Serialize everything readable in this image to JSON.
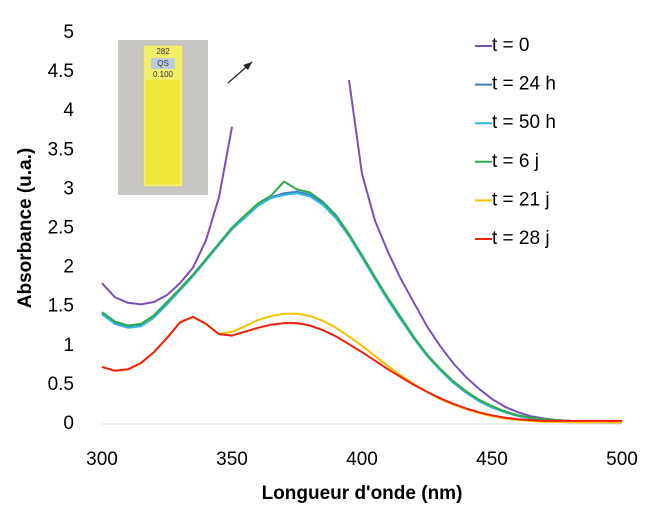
{
  "chart_data": {
    "type": "line",
    "x_label": "Longueur d'onde (nm)",
    "y_label": "Absorbance (u.a.)",
    "annotations": [
      "282",
      "QS",
      "0.100"
    ],
    "x": [
      300,
      305,
      310,
      315,
      320,
      325,
      330,
      335,
      340,
      345,
      350,
      355,
      360,
      365,
      370,
      375,
      380,
      385,
      390,
      395,
      400,
      405,
      410,
      415,
      420,
      425,
      430,
      435,
      440,
      445,
      450,
      455,
      460,
      465,
      470,
      475,
      480,
      485,
      490,
      495,
      500
    ],
    "series": [
      {
        "name": "t = 0",
        "color": "#7b4fb5",
        "values": [
          1.8,
          1.62,
          1.55,
          1.53,
          1.56,
          1.65,
          1.8,
          2.0,
          2.35,
          2.9,
          3.8,
          null,
          null,
          null,
          null,
          null,
          null,
          null,
          null,
          4.4,
          3.2,
          2.6,
          2.2,
          1.85,
          1.55,
          1.25,
          1.0,
          0.78,
          0.6,
          0.45,
          0.32,
          0.22,
          0.15,
          0.1,
          0.07,
          0.05,
          0.04,
          0.03,
          0.03,
          0.03,
          0.03
        ]
      },
      {
        "name": "t = 24 h",
        "color": "#3a7cc0",
        "values": [
          1.42,
          1.3,
          1.25,
          1.27,
          1.38,
          1.55,
          1.72,
          1.9,
          2.1,
          2.3,
          2.5,
          2.65,
          2.8,
          2.9,
          2.95,
          2.97,
          2.93,
          2.82,
          2.65,
          2.42,
          2.15,
          1.87,
          1.6,
          1.35,
          1.1,
          0.88,
          0.7,
          0.54,
          0.41,
          0.3,
          0.22,
          0.16,
          0.11,
          0.08,
          0.06,
          0.05,
          0.04,
          0.03,
          0.03,
          0.02,
          0.02
        ]
      },
      {
        "name": "t = 50 h",
        "color": "#31b8e0",
        "values": [
          1.4,
          1.28,
          1.23,
          1.25,
          1.36,
          1.53,
          1.71,
          1.89,
          2.09,
          2.29,
          2.49,
          2.64,
          2.79,
          2.89,
          2.93,
          2.95,
          2.91,
          2.8,
          2.63,
          2.4,
          2.13,
          1.85,
          1.58,
          1.33,
          1.09,
          0.87,
          0.69,
          0.53,
          0.4,
          0.29,
          0.21,
          0.15,
          0.1,
          0.07,
          0.05,
          0.04,
          0.03,
          0.03,
          0.02,
          0.02,
          0.02
        ]
      },
      {
        "name": "t = 6 j",
        "color": "#2fa84f",
        "values": [
          1.43,
          1.31,
          1.26,
          1.28,
          1.39,
          1.56,
          1.73,
          1.91,
          2.11,
          2.31,
          2.51,
          2.67,
          2.82,
          2.92,
          3.1,
          3.0,
          2.96,
          2.84,
          2.67,
          2.43,
          2.16,
          1.88,
          1.61,
          1.36,
          1.11,
          0.89,
          0.71,
          0.55,
          0.42,
          0.31,
          0.23,
          0.16,
          0.11,
          0.08,
          0.06,
          0.05,
          0.04,
          0.03,
          0.03,
          0.02,
          0.02
        ]
      },
      {
        "name": "t = 21 j",
        "color": "#f5c200",
        "values": [
          0.73,
          0.68,
          0.7,
          0.78,
          0.92,
          1.1,
          1.3,
          1.37,
          1.28,
          1.15,
          1.18,
          1.25,
          1.33,
          1.38,
          1.41,
          1.41,
          1.38,
          1.32,
          1.23,
          1.12,
          1.0,
          0.87,
          0.74,
          0.62,
          0.51,
          0.41,
          0.32,
          0.25,
          0.19,
          0.14,
          0.1,
          0.07,
          0.05,
          0.04,
          0.03,
          0.03,
          0.02,
          0.02,
          0.02,
          0.02,
          0.02
        ]
      },
      {
        "name": "t = 28 j",
        "color": "#f0200a",
        "values": [
          0.73,
          0.68,
          0.7,
          0.78,
          0.92,
          1.1,
          1.3,
          1.37,
          1.28,
          1.15,
          1.13,
          1.18,
          1.23,
          1.27,
          1.29,
          1.29,
          1.26,
          1.2,
          1.12,
          1.02,
          0.92,
          0.81,
          0.7,
          0.6,
          0.5,
          0.41,
          0.33,
          0.26,
          0.2,
          0.15,
          0.11,
          0.08,
          0.06,
          0.05,
          0.04,
          0.04,
          0.04,
          0.04,
          0.04,
          0.04,
          0.04
        ]
      }
    ],
    "xlim": [
      300,
      500
    ],
    "xticks": [
      300,
      350,
      400,
      450,
      500
    ],
    "ylim": [
      0,
      5
    ],
    "yticks": [
      0,
      0.5,
      1,
      1.5,
      2,
      2.5,
      3,
      3.5,
      4,
      4.5,
      5
    ],
    "grid": false,
    "legend": "right"
  }
}
